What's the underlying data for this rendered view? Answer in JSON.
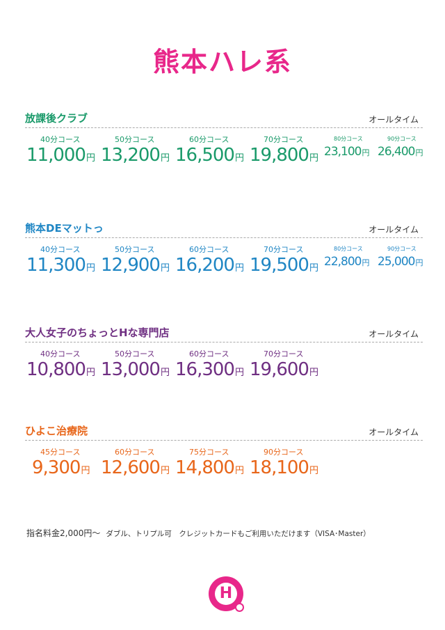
{
  "title": "熊本ハレ系",
  "alltime_label": "オールタイム",
  "sections": [
    {
      "name": "放課後クラブ",
      "color": "#1a9a6a",
      "courses": [
        {
          "course": "40分コース",
          "price": "11,000",
          "unit": "円"
        },
        {
          "course": "50分コース",
          "price": "13,200",
          "unit": "円"
        },
        {
          "course": "60分コース",
          "price": "16,500",
          "unit": "円"
        },
        {
          "course": "70分コース",
          "price": "19,800",
          "unit": "円"
        },
        {
          "course": "80分コース",
          "price": "23,100",
          "unit": "円"
        },
        {
          "course": "90分コース",
          "price": "26,400",
          "unit": "円"
        }
      ]
    },
    {
      "name": "熊本DEマットっ",
      "color": "#1f86c4",
      "courses": [
        {
          "course": "40分コース",
          "price": "11,300",
          "unit": "円"
        },
        {
          "course": "50分コース",
          "price": "12,900",
          "unit": "円"
        },
        {
          "course": "60分コース",
          "price": "16,200",
          "unit": "円"
        },
        {
          "course": "70分コース",
          "price": "19,500",
          "unit": "円"
        },
        {
          "course": "80分コース",
          "price": "22,800",
          "unit": "円"
        },
        {
          "course": "90分コース",
          "price": "25,000",
          "unit": "円"
        }
      ]
    },
    {
      "name": "大人女子のちょっとHな専門店",
      "color": "#6f2f82",
      "courses": [
        {
          "course": "40分コース",
          "price": "10,800",
          "unit": "円"
        },
        {
          "course": "50分コース",
          "price": "13,000",
          "unit": "円"
        },
        {
          "course": "60分コース",
          "price": "16,300",
          "unit": "円"
        },
        {
          "course": "70分コース",
          "price": "19,600",
          "unit": "円"
        }
      ]
    },
    {
      "name": "ひよこ治療院",
      "color": "#e8661a",
      "courses": [
        {
          "course": "45分コース",
          "price": "9,300",
          "unit": "円"
        },
        {
          "course": "60分コース",
          "price": "12,600",
          "unit": "円"
        },
        {
          "course": "75分コース",
          "price": "14,800",
          "unit": "円"
        },
        {
          "course": "90分コース",
          "price": "18,100",
          "unit": "円"
        }
      ]
    }
  ],
  "footer": {
    "nomination": "指名料金2,000円〜",
    "notes": "ダブル、トリプル可　クレジットカードもご利用いただけます（VISA･Master）"
  },
  "logo": {
    "letter": "H"
  }
}
